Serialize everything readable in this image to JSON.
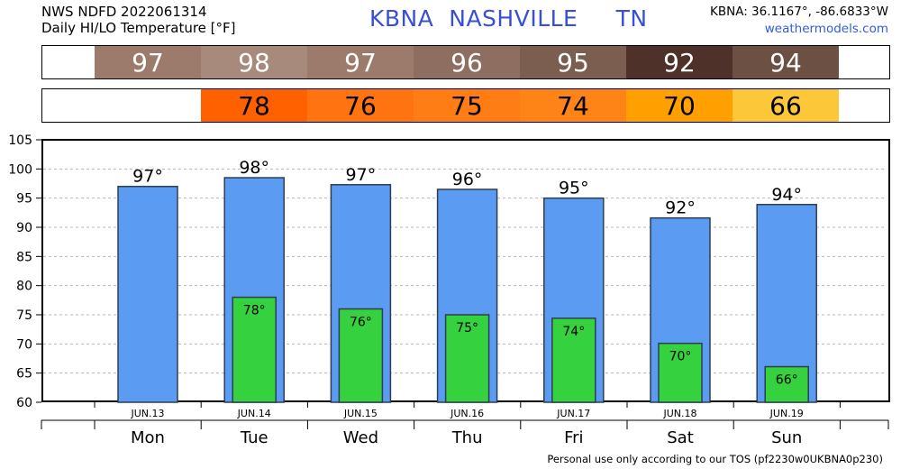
{
  "header": {
    "source": "NWS NDFD 2022061314",
    "product": "Daily HI/LO Temperature [°F]",
    "station_title": "KBNA  NASHVILLE     TN",
    "coords": "KBNA: 36.1167°, -86.6833°W",
    "site": "weathermodels.com"
  },
  "strips": {
    "hi": [
      {
        "value": "97",
        "color": "#9c7b6c"
      },
      {
        "value": "98",
        "color": "#a88a7c"
      },
      {
        "value": "97",
        "color": "#9c7b6c"
      },
      {
        "value": "96",
        "color": "#8e6e60"
      },
      {
        "value": "95",
        "color": "#7c5e51"
      },
      {
        "value": "92",
        "color": "#4e3129"
      },
      {
        "value": "94",
        "color": "#6d5044"
      }
    ],
    "lo": [
      {
        "value": "",
        "color": "#ffffff"
      },
      {
        "value": "78",
        "color": "#ff6000"
      },
      {
        "value": "76",
        "color": "#ff7410"
      },
      {
        "value": "75",
        "color": "#ff7d14"
      },
      {
        "value": "74",
        "color": "#ff8418"
      },
      {
        "value": "70",
        "color": "#ffa000"
      },
      {
        "value": "66",
        "color": "#fcc83a"
      }
    ]
  },
  "chart_data": {
    "type": "bar",
    "categories": [
      "Mon",
      "Tue",
      "Wed",
      "Thu",
      "Fri",
      "Sat",
      "Sun"
    ],
    "dates": [
      "JUN.13",
      "JUN.14",
      "JUN.15",
      "JUN.16",
      "JUN.17",
      "JUN.18",
      "JUN.19"
    ],
    "series": [
      {
        "values": [
          97,
          98.5,
          97.3,
          96.5,
          95,
          91.6,
          93.9
        ],
        "labels": [
          "97°",
          "98°",
          "97°",
          "96°",
          "95°",
          "92°",
          "94°"
        ],
        "color": "#5b9cf2"
      },
      {
        "values": [
          null,
          78,
          76,
          75,
          74.4,
          70.1,
          66.1
        ],
        "labels": [
          "",
          "78°",
          "76°",
          "75°",
          "74°",
          "70°",
          "66°"
        ],
        "color": "#36d13f"
      }
    ],
    "ylim": [
      60,
      105
    ],
    "yticks": [
      60,
      65,
      70,
      75,
      80,
      85,
      90,
      95,
      100,
      105
    ],
    "grid": true
  },
  "footer": "Personal use only according to our TOS (pf2230w0UKBNA0p230)"
}
